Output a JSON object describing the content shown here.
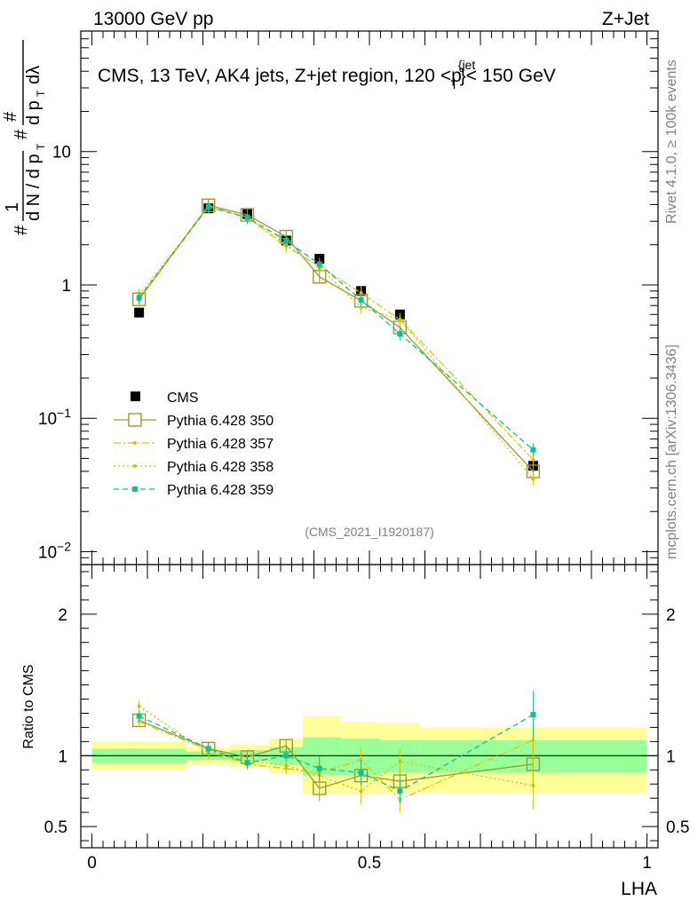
{
  "header": {
    "left_label": "13000 GeV pp",
    "right_label": "Z+Jet",
    "side_label_top": "Rivet 4.1.0, ≥ 100k events",
    "side_label_bottom": "mcplots.cern.ch [arXiv:1306.3436]"
  },
  "chart_data": [
    {
      "type": "line",
      "role": "main",
      "title": "CMS, 13 TeV, AK4 jets, Z+jet region, 120 <p_T^{jet}< 150 GeV",
      "ylabel": "1/dN/dp_T dN^2/dp_T dλ",
      "yscale": "log",
      "ylim": [
        0.008,
        80
      ],
      "xlim": [
        -0.02,
        1.02
      ],
      "y_ticks": [
        0.01,
        0.1,
        1,
        10
      ],
      "y_tick_labels": [
        "10^{-2}",
        "10^{-1}",
        "1",
        "10"
      ],
      "watermark": "(CMS_2021_I1920187)",
      "x": [
        0.085,
        0.21,
        0.28,
        0.35,
        0.41,
        0.485,
        0.555,
        0.795
      ],
      "series": [
        {
          "name": "CMS",
          "color": "#000000",
          "style": "data",
          "values": [
            0.62,
            3.75,
            3.4,
            2.15,
            1.57,
            0.9,
            0.6,
            0.044
          ]
        },
        {
          "name": "Pythia 6.428 350",
          "color": "#9a9a30",
          "style": "solid-open-square",
          "values": [
            0.78,
            3.95,
            3.35,
            2.3,
            1.15,
            0.76,
            0.48,
            0.04
          ]
        },
        {
          "name": "Pythia 6.428 357",
          "color": "#e8c000",
          "style": "dashdot",
          "values": [
            0.77,
            3.9,
            3.2,
            1.95,
            1.38,
            0.87,
            0.55,
            0.049
          ]
        },
        {
          "name": "Pythia 6.428 358",
          "color": "#c8c800",
          "style": "dotted",
          "values": [
            0.84,
            3.85,
            3.25,
            2.0,
            1.35,
            0.68,
            0.55,
            0.035
          ]
        },
        {
          "name": "Pythia 6.428 359",
          "color": "#10c090",
          "style": "dashed",
          "values": [
            0.8,
            3.85,
            3.2,
            2.15,
            1.43,
            0.77,
            0.43,
            0.058
          ]
        }
      ]
    },
    {
      "type": "line",
      "role": "ratio",
      "ylabel": "Ratio to CMS",
      "ylim": [
        0.35,
        2.35
      ],
      "y_ticks": [
        0.5,
        1,
        2
      ],
      "y_tick_labels": [
        "0.5",
        "1",
        "2"
      ],
      "xlabel": "LHA",
      "xlim": [
        -0.02,
        1.02
      ],
      "x_ticks": [
        0,
        0.5,
        1
      ],
      "x_tick_labels": [
        "0",
        "0.5",
        "1"
      ],
      "bins": [
        {
          "lo": 0.0,
          "hi": 0.17,
          "green": [
            0.95,
            1.05
          ],
          "yellow": [
            0.9,
            1.1
          ]
        },
        {
          "lo": 0.17,
          "hi": 0.25,
          "green": [
            0.97,
            1.03
          ],
          "yellow": [
            0.94,
            1.06
          ]
        },
        {
          "lo": 0.25,
          "hi": 0.32,
          "green": [
            0.96,
            1.04
          ],
          "yellow": [
            0.92,
            1.08
          ]
        },
        {
          "lo": 0.32,
          "hi": 0.38,
          "green": [
            0.94,
            1.06
          ],
          "yellow": [
            0.88,
            1.12
          ]
        },
        {
          "lo": 0.38,
          "hi": 0.45,
          "green": [
            0.86,
            1.13
          ],
          "yellow": [
            0.73,
            1.28
          ]
        },
        {
          "lo": 0.45,
          "hi": 0.52,
          "green": [
            0.86,
            1.12
          ],
          "yellow": [
            0.73,
            1.24
          ]
        },
        {
          "lo": 0.52,
          "hi": 0.59,
          "green": [
            0.88,
            1.11
          ],
          "yellow": [
            0.74,
            1.23
          ]
        },
        {
          "lo": 0.59,
          "hi": 1.0,
          "green": [
            0.88,
            1.11
          ],
          "yellow": [
            0.74,
            1.2
          ]
        }
      ],
      "x": [
        0.085,
        0.21,
        0.28,
        0.35,
        0.41,
        0.485,
        0.555,
        0.795
      ],
      "series": [
        {
          "name": "Pythia 6.428 350",
          "color": "#9a9a30",
          "style": "solid-open-square",
          "values": [
            1.25,
            1.05,
            0.99,
            1.07,
            0.77,
            0.86,
            0.82,
            0.94
          ]
        },
        {
          "name": "Pythia 6.428 357",
          "color": "#e8c000",
          "style": "dashdot",
          "values": [
            1.24,
            1.04,
            0.94,
            0.91,
            0.88,
            0.97,
            0.69,
            1.11
          ]
        },
        {
          "name": "Pythia 6.428 358",
          "color": "#c8c800",
          "style": "dotted",
          "values": [
            1.35,
            1.02,
            0.96,
            0.93,
            0.86,
            0.75,
            0.96,
            0.79
          ]
        },
        {
          "name": "Pythia 6.428 359",
          "color": "#10c090",
          "style": "dashed",
          "values": [
            1.28,
            1.05,
            0.95,
            1.0,
            0.91,
            0.88,
            0.75,
            1.29
          ]
        }
      ]
    }
  ]
}
